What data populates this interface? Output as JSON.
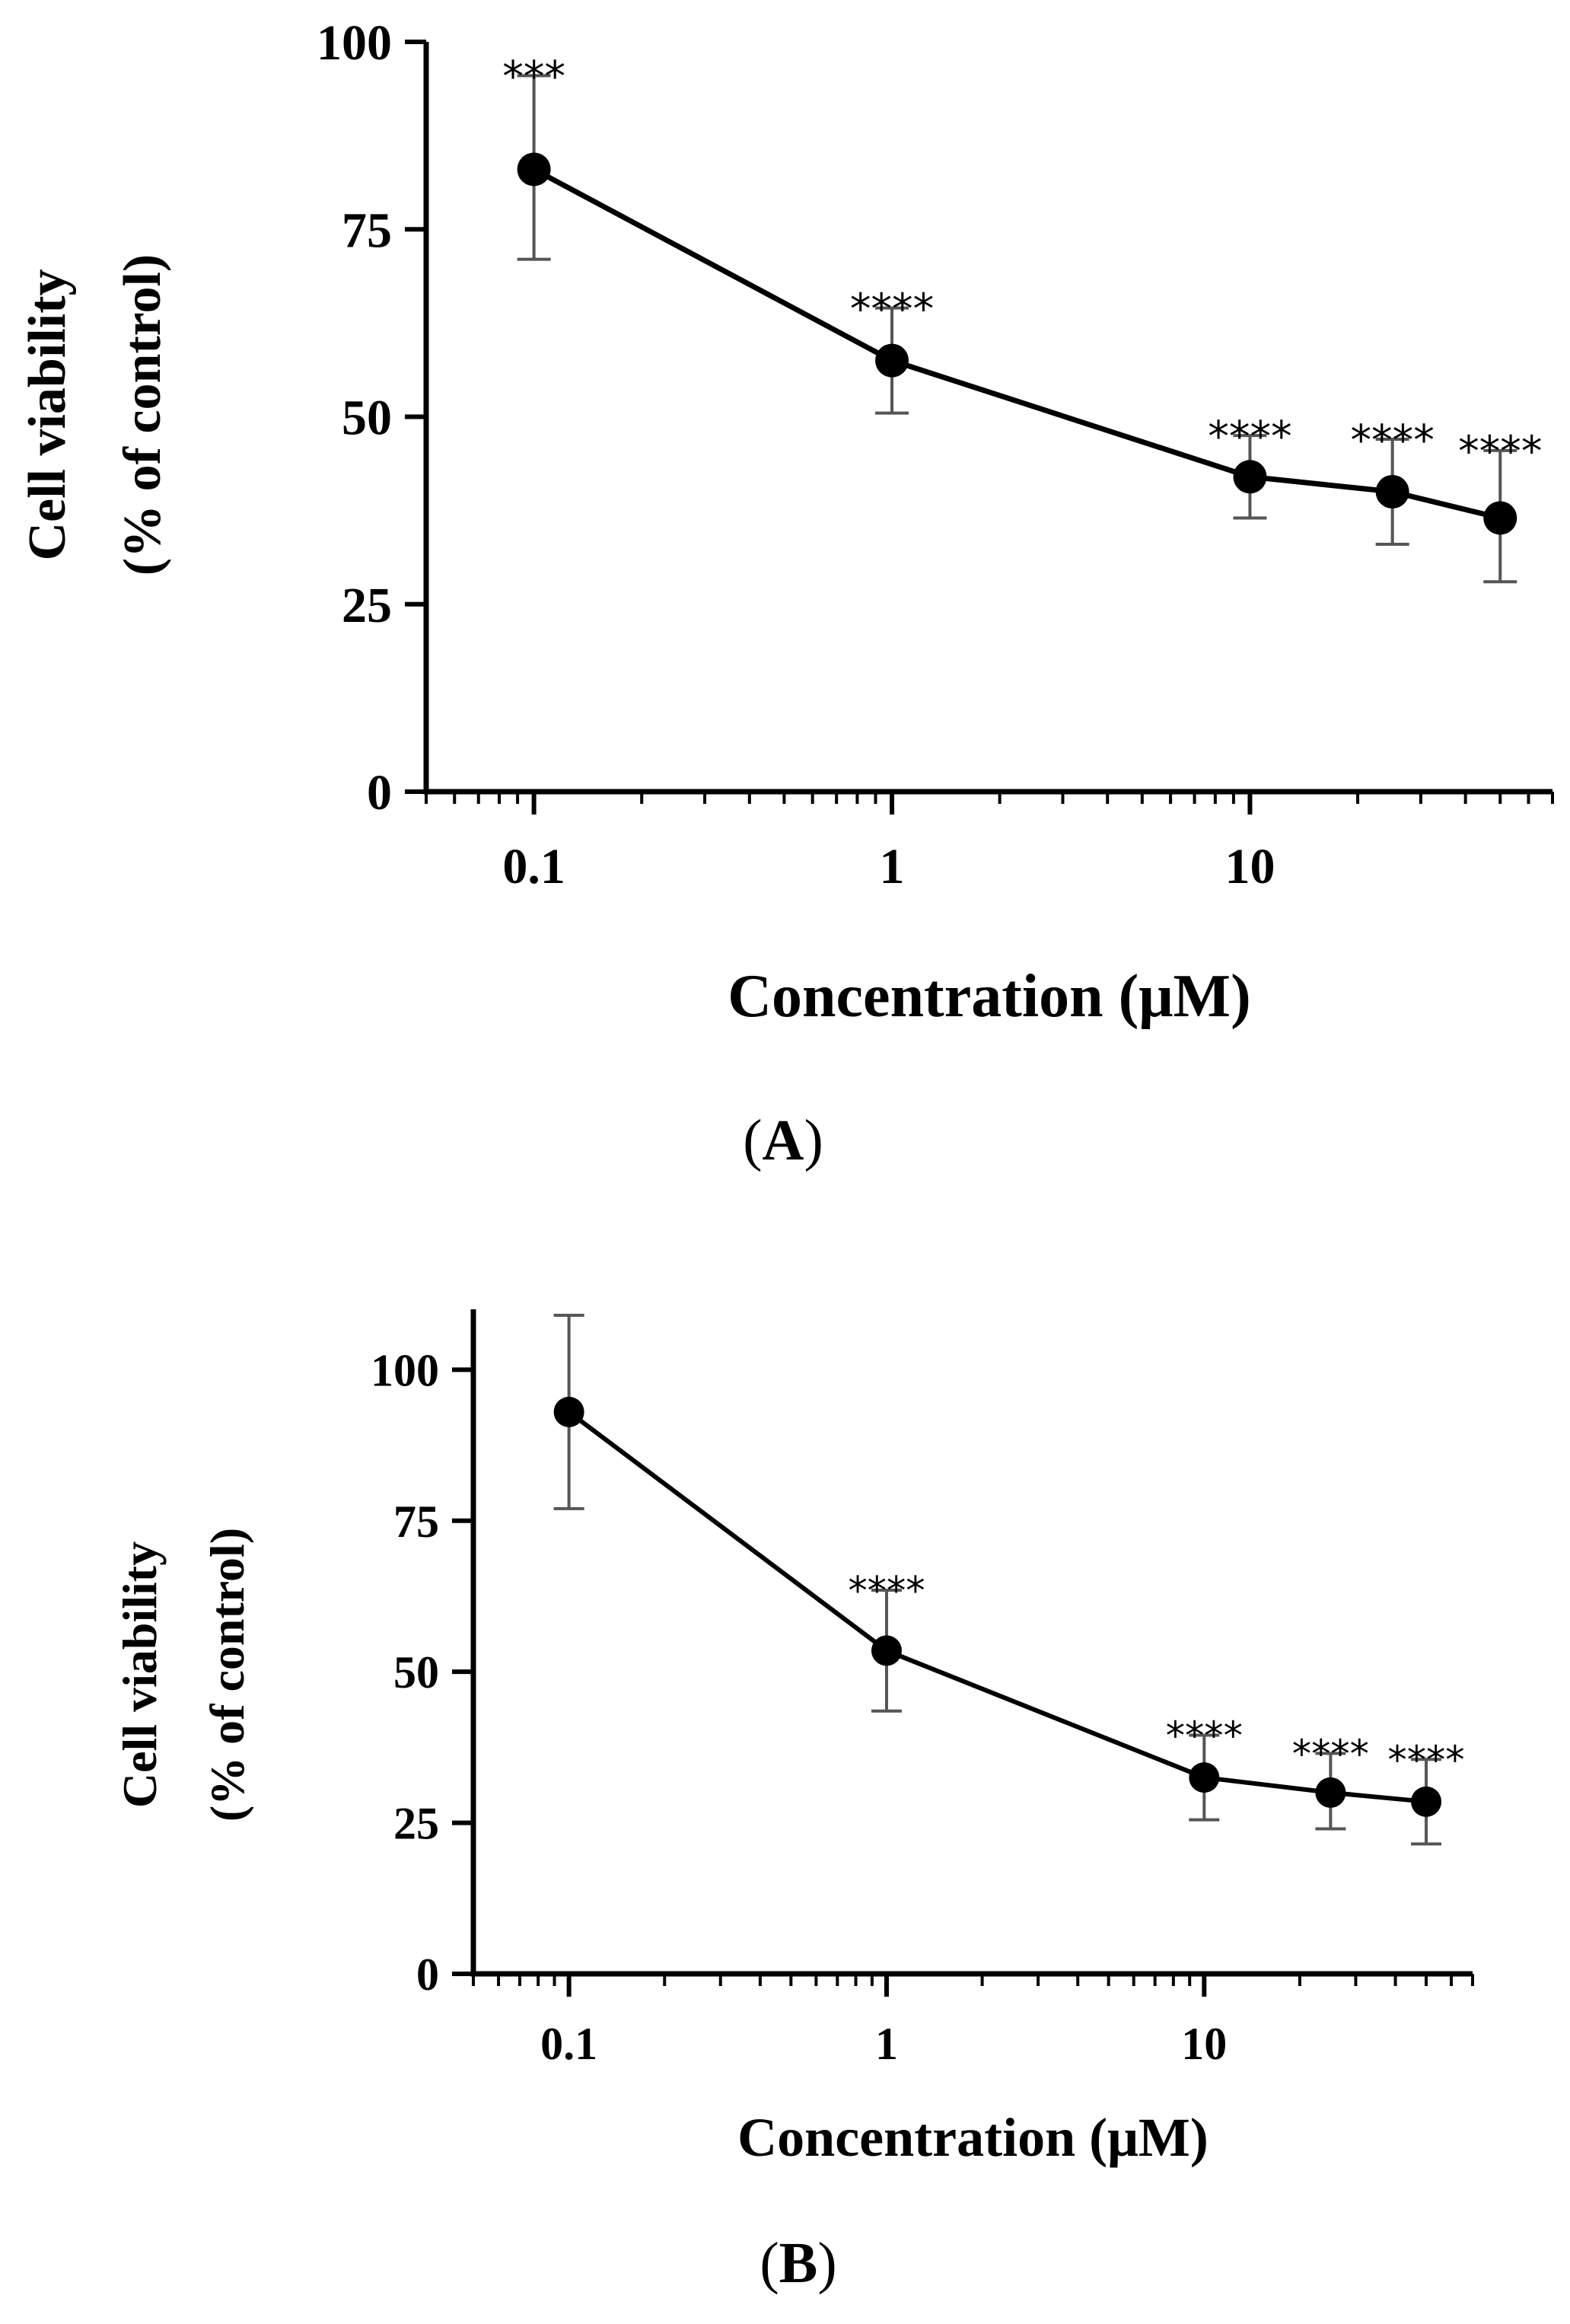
{
  "figure": {
    "panels": [
      {
        "id": "A",
        "label_open": "(",
        "label_letter": "A",
        "label_close": ")"
      },
      {
        "id": "B",
        "label_open": "(",
        "label_letter": "B",
        "label_close": ")"
      }
    ]
  },
  "colors": {
    "ink": "#000000",
    "error_bar": "#555555",
    "annotation": "#444444"
  },
  "chart_data": [
    {
      "type": "line",
      "panel": "A",
      "title": "",
      "xlabel": "Concentration (μM)",
      "ylabel_line1": "Cell viability",
      "ylabel_line2": "(% of control)",
      "xscale": "log",
      "xlim": [
        0.05,
        70
      ],
      "ylim": [
        0,
        100
      ],
      "xticks": [
        0.1,
        1,
        10
      ],
      "xtick_labels": [
        "0.1",
        "1",
        "10"
      ],
      "yticks": [
        0,
        25,
        50,
        75,
        100
      ],
      "ytick_labels": [
        "0",
        "25",
        "50",
        "75",
        "100"
      ],
      "grid": false,
      "series": [
        {
          "name": "Cell viability",
          "x": [
            0.1,
            1,
            10,
            25,
            50
          ],
          "y": [
            83,
            57.5,
            42,
            40,
            36.5
          ],
          "yerr_low": [
            71,
            50.5,
            36.5,
            33,
            28
          ],
          "yerr_high": [
            95.5,
            64.5,
            47.5,
            47,
            45.5
          ],
          "annotations": [
            "***",
            "****",
            "****",
            "****",
            "****"
          ]
        }
      ]
    },
    {
      "type": "line",
      "panel": "B",
      "title": "",
      "xlabel": "Concentration (μM)",
      "ylabel_line1": "Cell viability",
      "ylabel_line2": "(% of control)",
      "xscale": "log",
      "xlim": [
        0.05,
        70
      ],
      "ylim": [
        0,
        110
      ],
      "xticks": [
        0.1,
        1,
        10
      ],
      "xtick_labels": [
        "0.1",
        "1",
        "10"
      ],
      "yticks": [
        0,
        25,
        50,
        75,
        100
      ],
      "ytick_labels": [
        "0",
        "25",
        "50",
        "75",
        "100"
      ],
      "grid": false,
      "series": [
        {
          "name": "Cell viability",
          "x": [
            0.1,
            1,
            10,
            25,
            50
          ],
          "y": [
            93,
            53.5,
            32.5,
            30,
            28.5
          ],
          "yerr_low": [
            77,
            43.5,
            25.5,
            24,
            21.5
          ],
          "yerr_high": [
            109,
            63.5,
            39.5,
            36.5,
            35.5
          ],
          "annotations": [
            "",
            "****",
            "****",
            "****",
            "****"
          ]
        }
      ]
    }
  ]
}
